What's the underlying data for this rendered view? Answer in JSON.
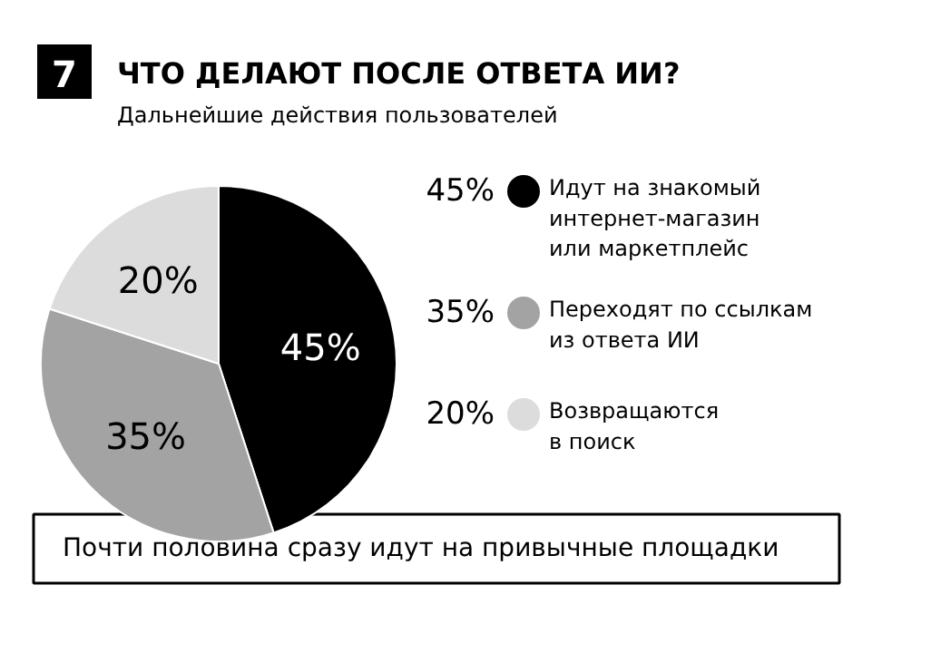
{
  "chart_data": {
    "type": "pie",
    "title": "ЧТО ДЕЛАЮТ ПОСЛЕ ОТВЕТА ИИ?",
    "subtitle": "Дальнейшие действия пользователей",
    "categories": [
      "Идут на знакомый\nинтернет-магазин\nили маркетплейс",
      "Переходят по ссылкам\nиз ответа ИИ",
      "Возвращаются\nв поиск"
    ],
    "values": [
      45,
      35,
      20
    ],
    "colors": [
      "#000000",
      "#a3a3a3",
      "#dcdcdc"
    ],
    "value_labels": [
      "45%",
      "35%",
      "20%"
    ],
    "legend": "right",
    "annotations": [
      "7",
      "Почти половина сразу идут на привычные площадки"
    ]
  }
}
